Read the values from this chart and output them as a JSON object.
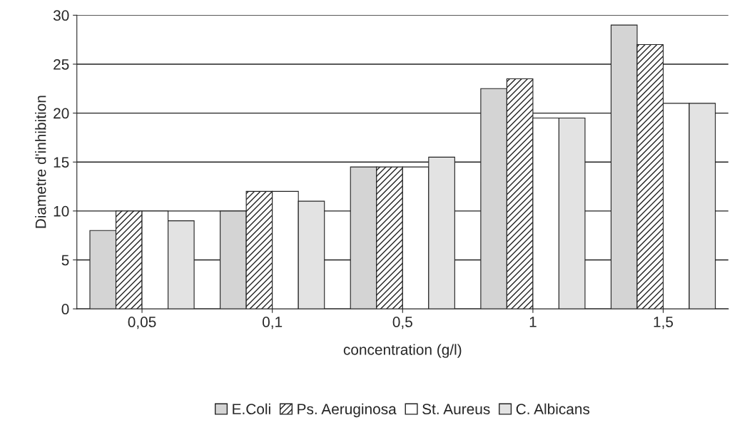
{
  "chart_data": {
    "type": "bar",
    "xlabel": "concentration (g/l)",
    "ylabel": "Diametre d'inhibition",
    "categories": [
      "0,05",
      "0,1",
      "0,5",
      "1",
      "1,5"
    ],
    "series": [
      {
        "name": "E.Coli",
        "color": "#d4d4d4",
        "values": [
          8,
          10,
          14.5,
          22.5,
          29
        ]
      },
      {
        "name": "Ps. Aeruginosa",
        "color": "#222222",
        "values": [
          10,
          12,
          14.5,
          23.5,
          27
        ]
      },
      {
        "name": "St. Aureus",
        "color": "#ffffff",
        "values": [
          10,
          12,
          14.5,
          19.5,
          21
        ]
      },
      {
        "name": "C. Albicans",
        "color": "#e3e3e3",
        "values": [
          9,
          11,
          15.5,
          19.5,
          21
        ]
      }
    ],
    "ylim": [
      0,
      30
    ],
    "yticks": [
      0,
      5,
      10,
      15,
      20,
      25,
      30
    ],
    "grid": "y",
    "legend": "bottom"
  }
}
